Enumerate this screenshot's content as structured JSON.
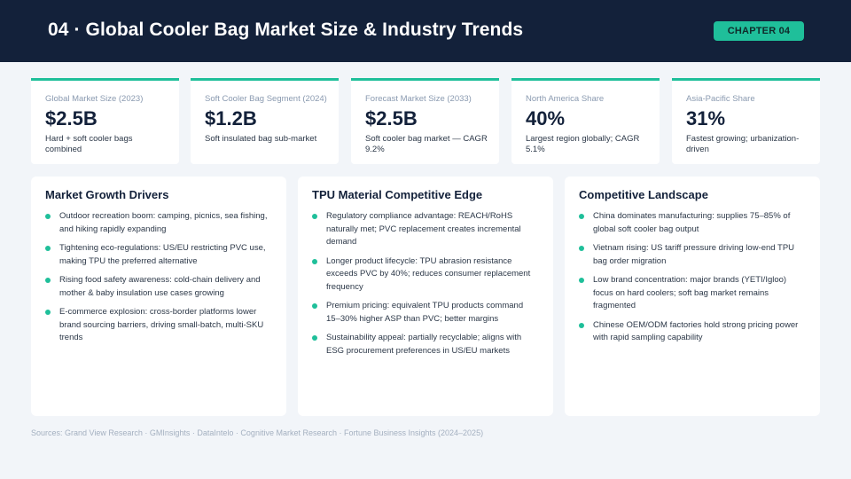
{
  "header": {
    "title": "04 · Global Cooler Bag Market Size & Industry Trends",
    "chapter": "CHAPTER 04"
  },
  "stats": [
    {
      "label": "Global Market Size (2023)",
      "value": "$2.5B",
      "desc": "Hard + soft cooler bags combined"
    },
    {
      "label": "Soft Cooler Bag Segment (2024)",
      "value": "$1.2B",
      "desc": "Soft insulated bag sub-market"
    },
    {
      "label": "Forecast Market Size (2033)",
      "value": "$2.5B",
      "desc": "Soft cooler bag market — CAGR 9.2%"
    },
    {
      "label": "North America Share",
      "value": "40%",
      "desc": "Largest region globally; CAGR 5.1%"
    },
    {
      "label": "Asia-Pacific Share",
      "value": "31%",
      "desc": "Fastest growing; urbanization-driven"
    }
  ],
  "panels": [
    {
      "title": "Market Growth Drivers",
      "items": [
        "Outdoor recreation boom: camping, picnics, sea fishing, and hiking rapidly expanding",
        "Tightening eco-regulations: US/EU restricting PVC use, making TPU the preferred alternative",
        "Rising food safety awareness: cold-chain delivery and mother & baby insulation use cases growing",
        "E-commerce explosion: cross-border platforms lower brand sourcing barriers, driving small-batch, multi-SKU trends"
      ]
    },
    {
      "title": "TPU Material Competitive Edge",
      "items": [
        "Regulatory compliance advantage: REACH/RoHS naturally met; PVC replacement creates incremental demand",
        "Longer product lifecycle: TPU abrasion resistance exceeds PVC by 40%; reduces consumer replacement frequency",
        "Premium pricing: equivalent TPU products command 15–30% higher ASP than PVC; better margins",
        "Sustainability appeal: partially recyclable; aligns with ESG procurement preferences in US/EU markets"
      ]
    },
    {
      "title": "Competitive Landscape",
      "items": [
        "China dominates manufacturing: supplies 75–85% of global soft cooler bag output",
        "Vietnam rising: US tariff pressure driving low-end TPU bag order migration",
        "Low brand concentration: major brands (YETI/Igloo) focus on hard coolers; soft bag market remains fragmented",
        "Chinese OEM/ODM factories hold strong pricing power with rapid sampling capability"
      ]
    }
  ],
  "sources": "Sources: Grand View Research · GMInsights · DataIntelo · Cognitive Market Research · Fortune Business Insights (2024–2025)",
  "colors": {
    "header_bg": "#13213a",
    "accent": "#1fbf9a",
    "page_bg": "#f2f5f9"
  }
}
